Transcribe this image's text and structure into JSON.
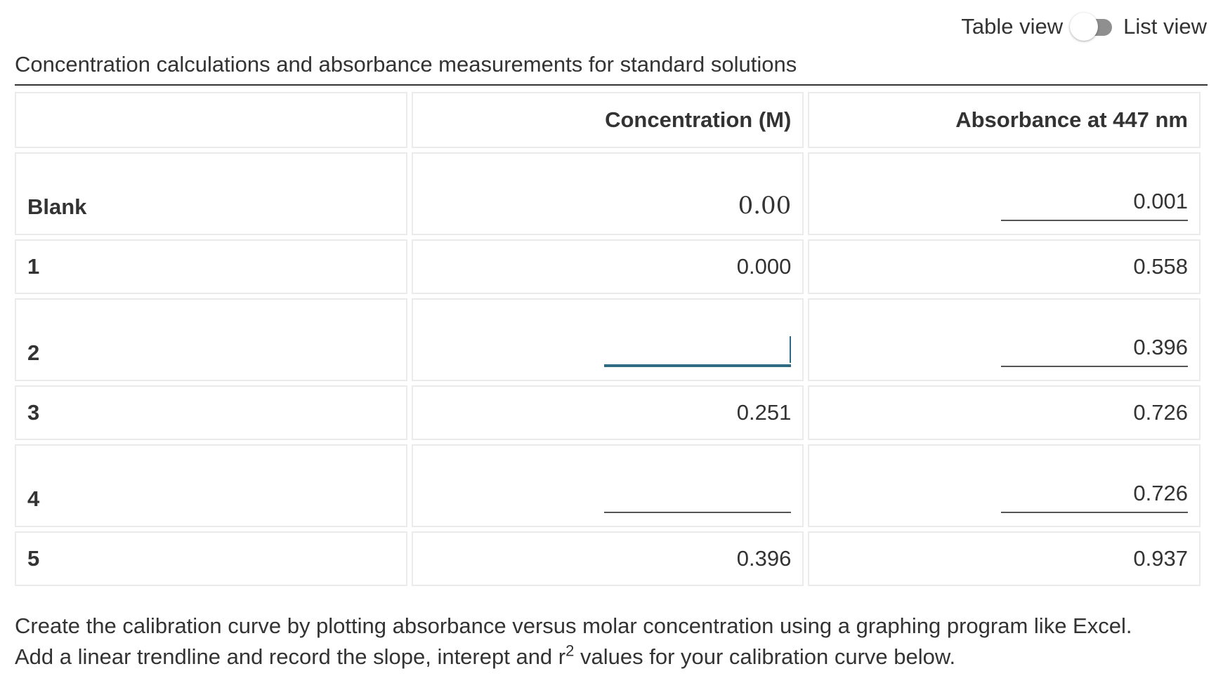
{
  "toggle": {
    "left_label": "Table view",
    "right_label": "List view"
  },
  "caption": "Concentration calculations and absorbance measurements for standard solutions",
  "table": {
    "headers": [
      "",
      "Concentration (M)",
      "Absorbance at 447 nm"
    ],
    "rows": [
      {
        "label": "Blank",
        "concentration": "0.00",
        "absorbance": "0.001"
      },
      {
        "label": "1",
        "concentration": "0.000",
        "absorbance": "0.558"
      },
      {
        "label": "2",
        "concentration": "",
        "absorbance": "0.396"
      },
      {
        "label": "3",
        "concentration": "0.251",
        "absorbance": "0.726"
      },
      {
        "label": "4",
        "concentration": "",
        "absorbance": "0.726"
      },
      {
        "label": "5",
        "concentration": "0.396",
        "absorbance": "0.937"
      }
    ]
  },
  "instructions": {
    "line1": "Create the calibration curve by plotting absorbance versus molar concentration using a graphing program like Excel.",
    "line2_before": "Add a linear trendline and record the slope, interept and r",
    "line2_sup": "2",
    "line2_after": " values for your calibration curve below."
  }
}
